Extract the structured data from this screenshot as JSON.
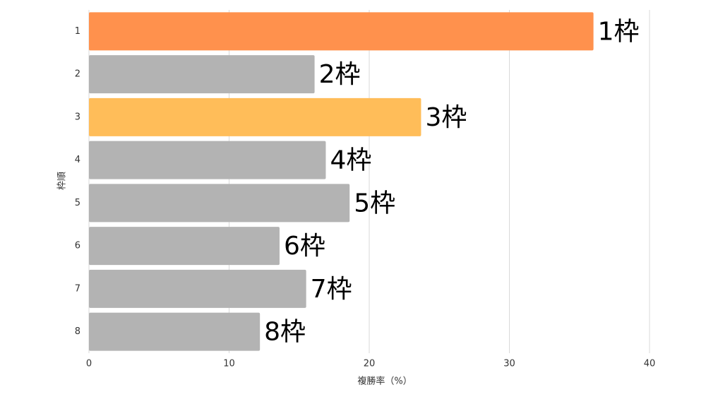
{
  "chart_data": {
    "type": "hbar",
    "y_label": "枠順",
    "x_label": "複勝率（%）",
    "categories": [
      "1",
      "2",
      "3",
      "4",
      "5",
      "6",
      "7",
      "8"
    ],
    "values": [
      36.0,
      16.1,
      23.7,
      16.9,
      18.6,
      13.6,
      15.5,
      12.2
    ],
    "bar_labels": [
      "1枠",
      "2枠",
      "3枠",
      "4枠",
      "5枠",
      "6枠",
      "7枠",
      "8枠"
    ],
    "colors": [
      "#ff914d",
      "#b3b3b3",
      "#ffbd59",
      "#b3b3b3",
      "#b3b3b3",
      "#b3b3b3",
      "#b3b3b3",
      "#b3b3b3"
    ],
    "xlim": [
      0,
      40
    ],
    "xticks": [
      0,
      10,
      20,
      30,
      40
    ],
    "grid": true
  }
}
